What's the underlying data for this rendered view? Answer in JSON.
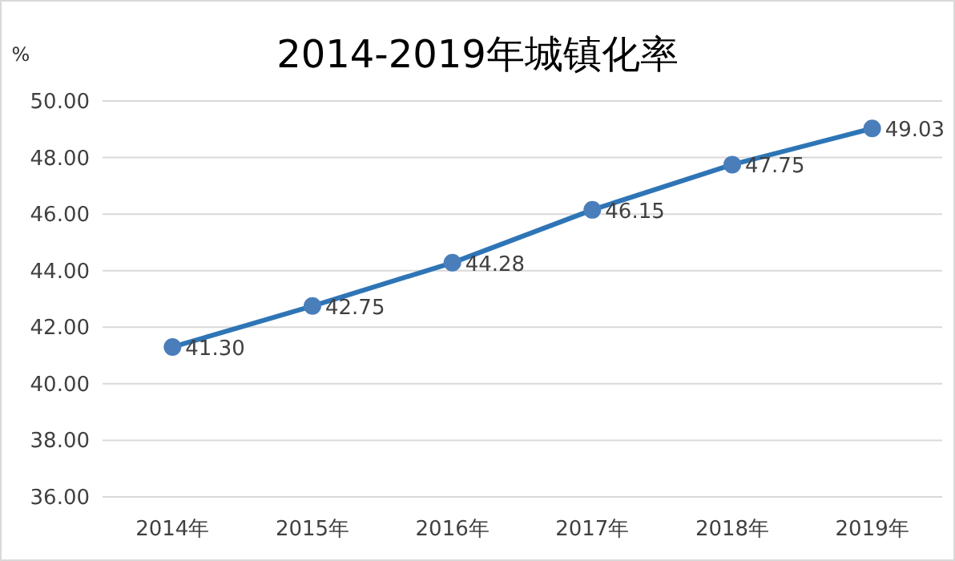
{
  "chart_data": {
    "type": "line",
    "title": "2014-2019年城镇化率",
    "ylabel": "%",
    "categories": [
      "2014年",
      "2015年",
      "2016年",
      "2017年",
      "2018年",
      "2019年"
    ],
    "values": [
      41.3,
      42.75,
      44.28,
      46.15,
      47.75,
      49.03
    ],
    "value_labels": [
      "41.30",
      "42.75",
      "44.28",
      "46.15",
      "47.75",
      "49.03"
    ],
    "color": "#2e75b6",
    "marker": "circle",
    "line_style": "solid",
    "ylim": [
      36,
      50
    ],
    "yticks": [
      {
        "value": 36,
        "label": "36.00"
      },
      {
        "value": 38,
        "label": "38.00"
      },
      {
        "value": 40,
        "label": "40.00"
      },
      {
        "value": 42,
        "label": "42.00"
      },
      {
        "value": 44,
        "label": "44.00"
      },
      {
        "value": 46,
        "label": "46.00"
      },
      {
        "value": 48,
        "label": "48.00"
      },
      {
        "value": 50,
        "label": "50.00"
      }
    ],
    "grid": "y"
  }
}
